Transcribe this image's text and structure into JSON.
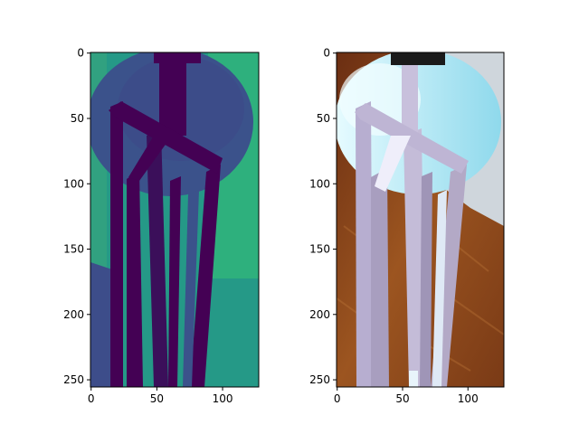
{
  "panels": [
    {
      "name": "depth-map",
      "x_ticks": [
        "0",
        "50",
        "100"
      ],
      "y_ticks": [
        "0",
        "50",
        "100",
        "150",
        "200",
        "250"
      ],
      "x_tick_values": [
        0,
        50,
        100
      ],
      "y_tick_values": [
        0,
        50,
        100,
        150,
        200,
        250
      ],
      "x_range": [
        -0.5,
        127.5
      ],
      "y_range": [
        255.5,
        -0.5
      ],
      "colormap": "viridis"
    },
    {
      "name": "rgb-image",
      "x_ticks": [
        "0",
        "50",
        "100"
      ],
      "y_ticks": [
        "0",
        "50",
        "100",
        "150",
        "200",
        "250"
      ],
      "x_tick_values": [
        0,
        50,
        100
      ],
      "y_tick_values": [
        0,
        50,
        100,
        150,
        200,
        250
      ],
      "x_range": [
        -0.5,
        127.5
      ],
      "y_range": [
        255.5,
        -0.5
      ],
      "colormap": "rgb"
    }
  ],
  "colors": {
    "depth_dark": "#440154",
    "depth_mid": "#3b528b",
    "depth_teal": "#21918c",
    "depth_green": "#35b779",
    "rgb_floor": "#8a4a1e",
    "rgb_table": "#b9ecf7",
    "rgb_legs": "#b3a9c6",
    "rgb_wall": "#cfd6dc"
  }
}
